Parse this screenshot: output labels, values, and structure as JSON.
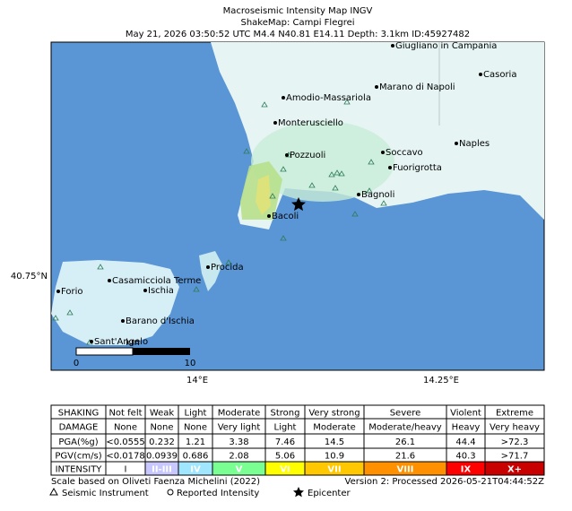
{
  "header": {
    "lines": [
      "Macroseismic Intensity Map INGV",
      "ShakeMap: Campi Flegrei",
      "May 21, 2026 03:50:52 UTC M4.4 N40.81 E14.11 Depth: 3.1km ID:45927482"
    ]
  },
  "map": {
    "places": [
      "Giugliano in Campania",
      "Casoria",
      "Marano di Napoli",
      "Amodio-Massariola",
      "Monterusciello",
      "Naples",
      "Soccavo",
      "Pozzuoli",
      "Fuorigrotta",
      "Bagnoli",
      "Bacoli",
      "Procida",
      "Casamicciola Terme",
      "Forio",
      "Ischia",
      "Barano d'Ischia",
      "Sant'Angelo"
    ],
    "lat_labels": [
      "40.75°N"
    ],
    "lon_labels": [
      "14°E",
      "14.25°E"
    ],
    "scale": {
      "start": "0",
      "end": "10",
      "unit": "km"
    }
  },
  "table": {
    "rows": [
      [
        "SHAKING",
        "Not felt",
        "Weak",
        "Light",
        "Moderate",
        "Strong",
        "Very strong",
        "Severe",
        "Violent",
        "Extreme"
      ],
      [
        "DAMAGE",
        "None",
        "None",
        "None",
        "Very light",
        "Light",
        "Moderate",
        "Moderate/heavy",
        "Heavy",
        "Very heavy"
      ],
      [
        "PGA(%g)",
        "<0.0555",
        "0.232",
        "1.21",
        "3.38",
        "7.46",
        "14.5",
        "26.1",
        "44.4",
        ">72.3"
      ],
      [
        "PGV(cm/s)",
        "<0.0178",
        "0.0939",
        "0.686",
        "2.08",
        "5.06",
        "10.9",
        "21.6",
        "40.3",
        ">71.7"
      ],
      [
        "INTENSITY",
        "I",
        "II-III",
        "IV",
        "V",
        "VI",
        "VII",
        "VIII",
        "IX",
        "X+"
      ]
    ],
    "intensity_colors": [
      "#ffffff",
      "#c8c8ff",
      "#a0e6ff",
      "#7aff93",
      "#ffff00",
      "#ffc800",
      "#ff9100",
      "#ff0000",
      "#c80000"
    ]
  },
  "footer": {
    "scale_note": "Scale based on Oliveti Faenza Michelini (2022)",
    "version": "Version 2: Processed 2026-05-21T04:44:52Z",
    "legend": [
      "Seismic Instrument",
      "Reported Intensity",
      "Epicenter"
    ]
  }
}
